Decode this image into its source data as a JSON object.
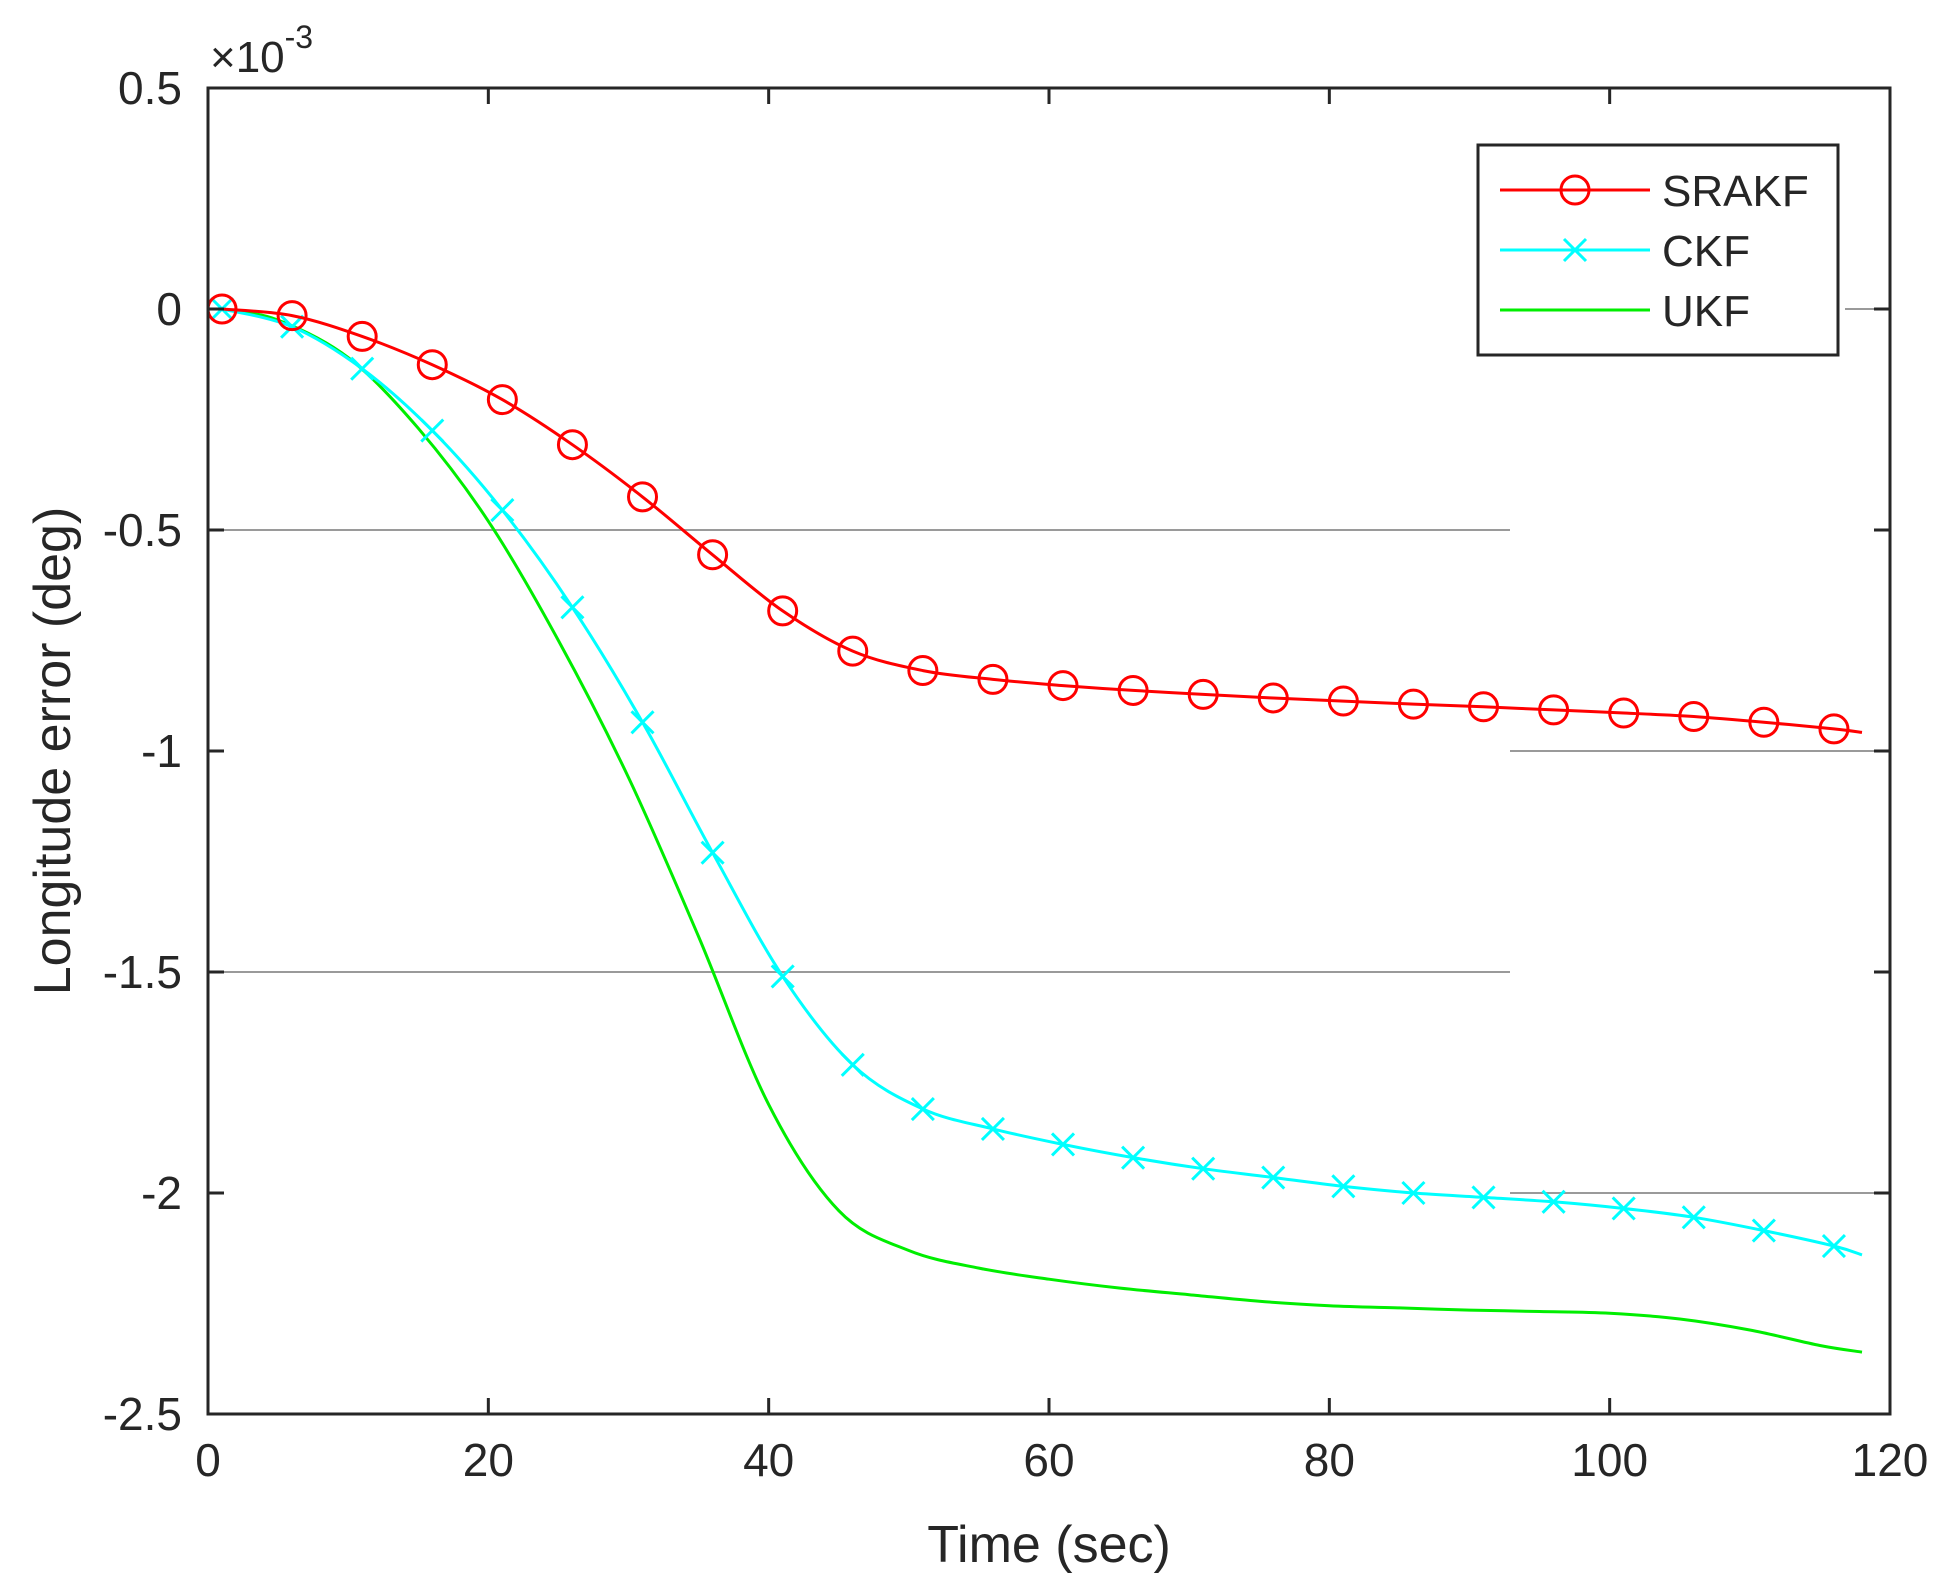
{
  "chart_data": {
    "type": "line",
    "xlabel": "Time (sec)",
    "ylabel": "Longitude error (deg)",
    "y_exponent_base": "×10",
    "y_exponent_power": "-3",
    "xlim": [
      0,
      120
    ],
    "ylim": [
      -2.5,
      0.5
    ],
    "xticks": [
      0,
      20,
      40,
      60,
      80,
      100,
      120
    ],
    "xtick_labels": [
      "0",
      "20",
      "40",
      "60",
      "80",
      "100",
      "120"
    ],
    "yticks": [
      0.5,
      0,
      -0.5,
      -1,
      -1.5,
      -2,
      -2.5
    ],
    "ytick_labels": [
      "0.5",
      "0",
      "-0.5",
      "-1",
      "-1.5",
      "-2",
      "-2.5"
    ],
    "legend_position": "top-right",
    "series": [
      {
        "name": "SRAKF",
        "color": "#ff0000",
        "marker": "circle",
        "x": [
          1,
          6,
          11,
          16,
          21,
          26,
          31,
          36,
          41,
          46,
          51,
          56,
          61,
          66,
          71,
          76,
          81,
          86,
          91,
          96,
          101,
          106,
          111,
          116,
          118
        ],
        "values": [
          0,
          -0.015,
          -0.062,
          -0.126,
          -0.205,
          -0.307,
          -0.425,
          -0.556,
          -0.683,
          -0.774,
          -0.818,
          -0.838,
          -0.852,
          -0.863,
          -0.872,
          -0.88,
          -0.887,
          -0.894,
          -0.9,
          -0.907,
          -0.914,
          -0.922,
          -0.935,
          -0.95,
          -0.958
        ]
      },
      {
        "name": "CKF",
        "color": "#00ffff",
        "marker": "x",
        "x": [
          1,
          6,
          11,
          16,
          21,
          26,
          31,
          36,
          41,
          46,
          51,
          56,
          61,
          66,
          71,
          76,
          81,
          86,
          91,
          96,
          101,
          106,
          111,
          116,
          118
        ],
        "values": [
          0,
          -0.04,
          -0.135,
          -0.275,
          -0.455,
          -0.675,
          -0.935,
          -1.23,
          -1.51,
          -1.71,
          -1.81,
          -1.855,
          -1.89,
          -1.92,
          -1.945,
          -1.965,
          -1.985,
          -2.0,
          -2.01,
          -2.02,
          -2.035,
          -2.055,
          -2.085,
          -2.12,
          -2.14
        ]
      },
      {
        "name": "UKF",
        "color": "#00ee00",
        "marker": "none",
        "x": [
          1,
          5,
          10,
          15,
          20,
          25,
          30,
          35,
          40,
          45,
          50,
          55,
          60,
          65,
          70,
          75,
          80,
          85,
          90,
          95,
          100,
          105,
          110,
          115,
          118
        ],
        "values": [
          0,
          -0.025,
          -0.11,
          -0.27,
          -0.48,
          -0.75,
          -1.06,
          -1.42,
          -1.8,
          -2.04,
          -2.13,
          -2.17,
          -2.195,
          -2.215,
          -2.23,
          -2.245,
          -2.255,
          -2.26,
          -2.265,
          -2.268,
          -2.272,
          -2.285,
          -2.31,
          -2.345,
          -2.36
        ]
      }
    ]
  }
}
